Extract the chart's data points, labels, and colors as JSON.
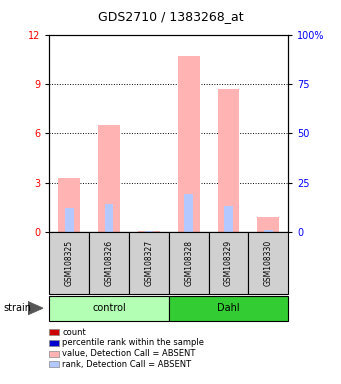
{
  "title": "GDS2710 / 1383268_at",
  "samples": [
    "GSM108325",
    "GSM108326",
    "GSM108327",
    "GSM108328",
    "GSM108329",
    "GSM108330"
  ],
  "groups": [
    "control",
    "control",
    "control",
    "Dahl",
    "Dahl",
    "Dahl"
  ],
  "group_colors": [
    "#b3ffb3",
    "#33cc33"
  ],
  "ylim_left": [
    0,
    12
  ],
  "ylim_right": [
    0,
    100
  ],
  "yticks_left": [
    0,
    3,
    6,
    9,
    12
  ],
  "yticks_right": [
    0,
    25,
    50,
    75,
    100
  ],
  "ytick_labels_left": [
    "0",
    "3",
    "6",
    "9",
    "12"
  ],
  "ytick_labels_right": [
    "0",
    "25",
    "50",
    "75",
    "100%"
  ],
  "value_absent": [
    3.3,
    6.5,
    0.05,
    10.7,
    8.7,
    0.9
  ],
  "rank_absent": [
    1.5,
    1.7,
    0.05,
    2.3,
    1.6,
    0.15
  ],
  "value_absent_color": "#ffb3b3",
  "rank_absent_color": "#b3c8ff",
  "count_color": "#cc0000",
  "rank_color": "#0000cc",
  "legend_items": [
    {
      "label": "count",
      "color": "#cc0000"
    },
    {
      "label": "percentile rank within the sample",
      "color": "#0000cc"
    },
    {
      "label": "value, Detection Call = ABSENT",
      "color": "#ffb3b3"
    },
    {
      "label": "rank, Detection Call = ABSENT",
      "color": "#b3c8ff"
    }
  ],
  "strain_label": "strain",
  "background_color": "#ffffff",
  "plot_bg_color": "#ffffff",
  "groups_info": [
    {
      "label": "control",
      "start": 0,
      "end": 2,
      "color": "#b3ffb3"
    },
    {
      "label": "Dahl",
      "start": 3,
      "end": 5,
      "color": "#33cc33"
    }
  ]
}
